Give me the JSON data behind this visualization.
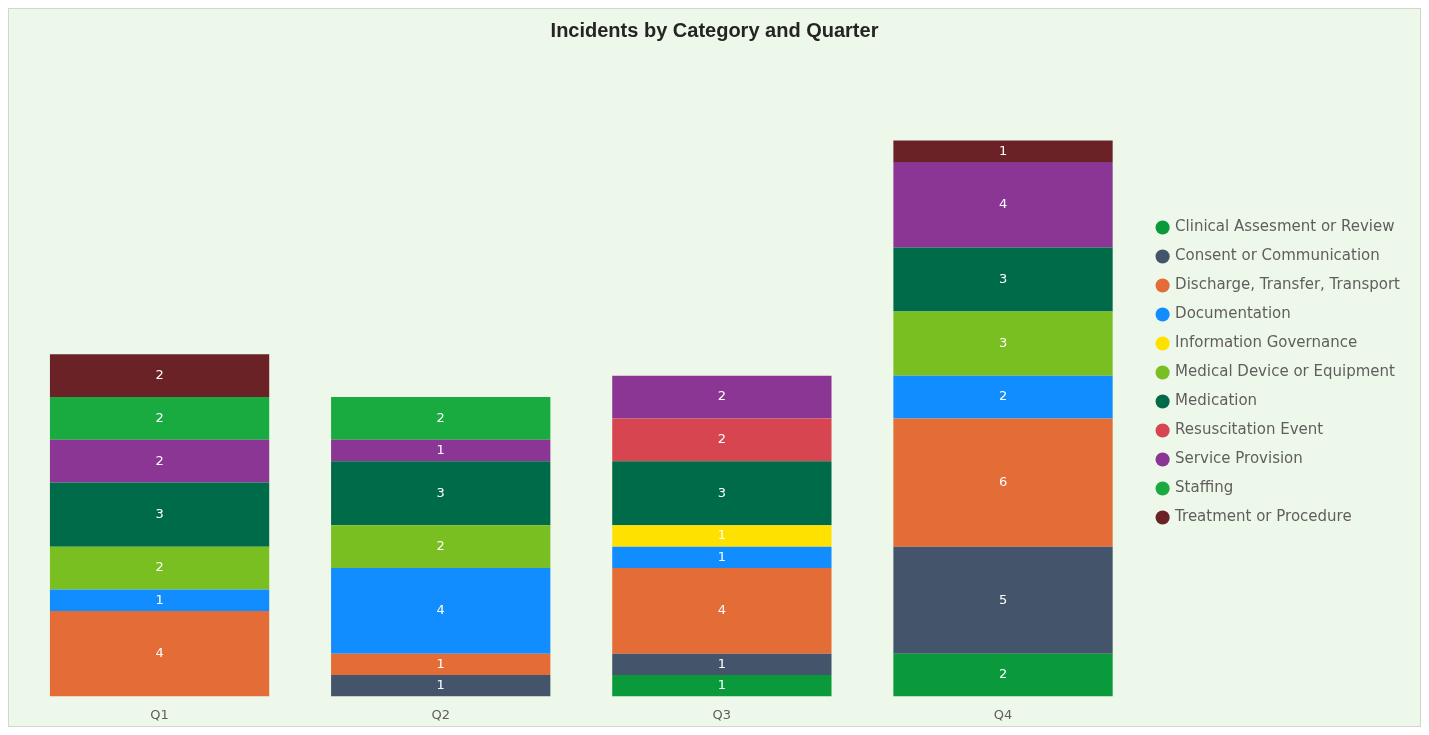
{
  "chart_data": {
    "type": "bar",
    "title": "Incidents by Category and Quarter",
    "categories": [
      "Q1",
      "Q2",
      "Q3",
      "Q4"
    ],
    "stacked": true,
    "data_labels": true,
    "legend": "right",
    "grid": false,
    "marker": "circle",
    "series": [
      {
        "name": "Clinical Assesment or Review",
        "color": "#0a9a3c",
        "values": [
          null,
          null,
          1,
          2
        ]
      },
      {
        "name": "Consent or Communication",
        "color": "#44546a",
        "values": [
          null,
          1,
          1,
          5
        ]
      },
      {
        "name": "Discharge, Transfer, Transport",
        "color": "#e46c36",
        "values": [
          4,
          1,
          4,
          6
        ]
      },
      {
        "name": "Documentation",
        "color": "#118dff",
        "values": [
          1,
          4,
          1,
          2
        ]
      },
      {
        "name": "Information Governance",
        "color": "#ffe100",
        "values": [
          null,
          null,
          1,
          null
        ]
      },
      {
        "name": "Medical Device or Equipment",
        "color": "#7abf21",
        "values": [
          2,
          2,
          null,
          3
        ]
      },
      {
        "name": "Medication",
        "color": "#006b48",
        "values": [
          3,
          3,
          3,
          3
        ]
      },
      {
        "name": "Resuscitation Event",
        "color": "#d64550",
        "values": [
          null,
          null,
          2,
          null
        ]
      },
      {
        "name": "Service Provision",
        "color": "#8b3595",
        "values": [
          2,
          1,
          2,
          4
        ]
      },
      {
        "name": "Staffing",
        "color": "#1aab40",
        "values": [
          2,
          2,
          null,
          null
        ]
      },
      {
        "name": "Treatment or Procedure",
        "color": "#6b2227",
        "values": [
          2,
          null,
          null,
          1
        ]
      }
    ]
  }
}
